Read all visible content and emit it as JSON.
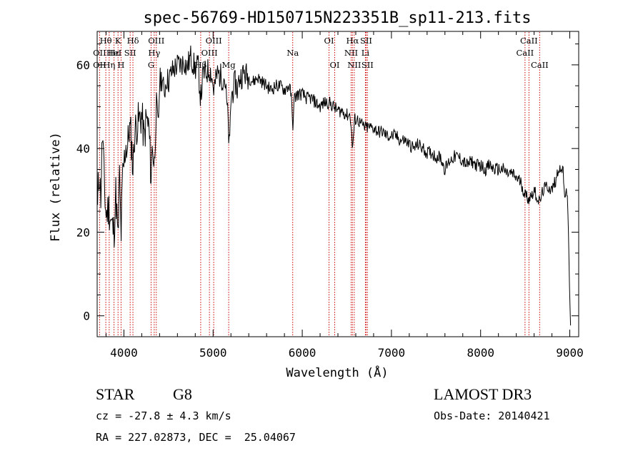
{
  "chart_data": {
    "type": "line",
    "title": "spec-56769-HD150715N223351B_sp11-213.fits",
    "xlabel": "Wavelength (Å)",
    "ylabel": "Flux (relative)",
    "xlim": [
      3700,
      9100
    ],
    "ylim": [
      -5,
      68
    ],
    "xticks": [
      4000,
      5000,
      6000,
      7000,
      8000,
      9000
    ],
    "yticks": [
      0,
      20,
      40,
      60
    ],
    "grid": false,
    "line_color": "#000000",
    "marker_color": "#cc0000",
    "anchors": [
      [
        3700,
        20
      ],
      [
        3710,
        30
      ],
      [
        3725,
        35
      ],
      [
        3740,
        28
      ],
      [
        3760,
        44
      ],
      [
        3780,
        31
      ],
      [
        3800,
        24
      ],
      [
        3830,
        26
      ],
      [
        3860,
        22
      ],
      [
        3889,
        20
      ],
      [
        3910,
        30
      ],
      [
        3934,
        17
      ],
      [
        3950,
        34
      ],
      [
        3968,
        19
      ],
      [
        3985,
        33
      ],
      [
        4000,
        36
      ],
      [
        4020,
        41
      ],
      [
        4040,
        40
      ],
      [
        4060,
        45
      ],
      [
        4080,
        43
      ],
      [
        4101,
        35
      ],
      [
        4120,
        44
      ],
      [
        4150,
        46
      ],
      [
        4180,
        47
      ],
      [
        4200,
        48
      ],
      [
        4227,
        42
      ],
      [
        4250,
        47
      ],
      [
        4280,
        45
      ],
      [
        4305,
        33
      ],
      [
        4320,
        42
      ],
      [
        4340,
        35
      ],
      [
        4360,
        50
      ],
      [
        4383,
        44
      ],
      [
        4400,
        56
      ],
      [
        4430,
        57
      ],
      [
        4450,
        53
      ],
      [
        4480,
        57
      ],
      [
        4500,
        56
      ],
      [
        4530,
        58
      ],
      [
        4560,
        59
      ],
      [
        4600,
        60
      ],
      [
        4640,
        60
      ],
      [
        4680,
        61
      ],
      [
        4700,
        59
      ],
      [
        4750,
        62
      ],
      [
        4800,
        59
      ],
      [
        4830,
        60
      ],
      [
        4861,
        52
      ],
      [
        4890,
        58
      ],
      [
        4920,
        58
      ],
      [
        4957,
        59
      ],
      [
        4980,
        58
      ],
      [
        5007,
        54
      ],
      [
        5050,
        58
      ],
      [
        5100,
        57
      ],
      [
        5130,
        57
      ],
      [
        5167,
        47
      ],
      [
        5173,
        44
      ],
      [
        5184,
        39
      ],
      [
        5200,
        52
      ],
      [
        5250,
        56
      ],
      [
        5270,
        54
      ],
      [
        5300,
        57
      ],
      [
        5350,
        58
      ],
      [
        5400,
        57
      ],
      [
        5450,
        56
      ],
      [
        5500,
        57
      ],
      [
        5550,
        56
      ],
      [
        5600,
        55
      ],
      [
        5650,
        54
      ],
      [
        5700,
        55
      ],
      [
        5750,
        55
      ],
      [
        5800,
        54
      ],
      [
        5850,
        55
      ],
      [
        5875,
        53
      ],
      [
        5893,
        45
      ],
      [
        5910,
        52
      ],
      [
        5950,
        53
      ],
      [
        6000,
        53
      ],
      [
        6050,
        52
      ],
      [
        6100,
        52
      ],
      [
        6150,
        51
      ],
      [
        6200,
        50
      ],
      [
        6250,
        51
      ],
      [
        6300,
        51
      ],
      [
        6350,
        50
      ],
      [
        6400,
        49
      ],
      [
        6450,
        49
      ],
      [
        6500,
        48
      ],
      [
        6540,
        48
      ],
      [
        6563,
        40
      ],
      [
        6590,
        47
      ],
      [
        6620,
        47
      ],
      [
        6650,
        46
      ],
      [
        6700,
        45
      ],
      [
        6750,
        45
      ],
      [
        6800,
        45
      ],
      [
        6850,
        44
      ],
      [
        6900,
        44
      ],
      [
        6950,
        43
      ],
      [
        7000,
        43
      ],
      [
        7050,
        43
      ],
      [
        7100,
        42
      ],
      [
        7150,
        42
      ],
      [
        7200,
        41
      ],
      [
        7250,
        40
      ],
      [
        7300,
        41
      ],
      [
        7350,
        40
      ],
      [
        7400,
        39
      ],
      [
        7450,
        39
      ],
      [
        7500,
        38
      ],
      [
        7550,
        38
      ],
      [
        7600,
        35
      ],
      [
        7650,
        37
      ],
      [
        7700,
        38
      ],
      [
        7750,
        38
      ],
      [
        7800,
        37
      ],
      [
        7850,
        36
      ],
      [
        7900,
        37
      ],
      [
        7950,
        36
      ],
      [
        8000,
        36
      ],
      [
        8050,
        35
      ],
      [
        8100,
        36
      ],
      [
        8150,
        35
      ],
      [
        8200,
        35
      ],
      [
        8250,
        35
      ],
      [
        8300,
        34
      ],
      [
        8350,
        34
      ],
      [
        8400,
        33
      ],
      [
        8450,
        32
      ],
      [
        8498,
        29
      ],
      [
        8542,
        28
      ],
      [
        8600,
        30
      ],
      [
        8662,
        27
      ],
      [
        8700,
        30
      ],
      [
        8750,
        31
      ],
      [
        8800,
        30
      ],
      [
        8850,
        33
      ],
      [
        8880,
        36
      ],
      [
        8900,
        34
      ],
      [
        8920,
        36
      ],
      [
        8940,
        28
      ],
      [
        8960,
        31
      ],
      [
        8980,
        25
      ],
      [
        9000,
        4
      ],
      [
        9010,
        -3
      ]
    ],
    "line_markers": [
      {
        "label": "Hθ",
        "x": 3797,
        "row": 0
      },
      {
        "label": "OII",
        "x": 3727,
        "row": 1
      },
      {
        "label": "OII",
        "x": 3727,
        "row": 2
      },
      {
        "label": "Hη",
        "x": 3835,
        "row": 2
      },
      {
        "label": "Hε",
        "x": 3889,
        "row": 1
      },
      {
        "label": "K",
        "x": 3934,
        "row": 0
      },
      {
        "label": "HeI",
        "x": 3889,
        "row": 1
      },
      {
        "label": "SII",
        "x": 4070,
        "row": 1
      },
      {
        "label": "H",
        "x": 3968,
        "row": 2
      },
      {
        "label": "Hδ",
        "x": 4101,
        "row": 0
      },
      {
        "label": "OIII",
        "x": 4363,
        "row": 0
      },
      {
        "label": "Hγ",
        "x": 4340,
        "row": 1
      },
      {
        "label": "G",
        "x": 4305,
        "row": 2
      },
      {
        "label": "OIII",
        "x": 5007,
        "row": 0
      },
      {
        "label": "OIII",
        "x": 4959,
        "row": 1
      },
      {
        "label": "Hβ",
        "x": 4861,
        "row": 2
      },
      {
        "label": "Mg",
        "x": 5175,
        "row": 2
      },
      {
        "label": "Na",
        "x": 5893,
        "row": 1
      },
      {
        "label": "OI",
        "x": 6300,
        "row": 0
      },
      {
        "label": "OI",
        "x": 6364,
        "row": 2
      },
      {
        "label": "Hα",
        "x": 6563,
        "row": 0
      },
      {
        "label": "NII",
        "x": 6548,
        "row": 1
      },
      {
        "label": "NII",
        "x": 6583,
        "row": 2
      },
      {
        "label": "SII",
        "x": 6716,
        "row": 0
      },
      {
        "label": "Li",
        "x": 6708,
        "row": 1
      },
      {
        "label": "SII",
        "x": 6731,
        "row": 2
      },
      {
        "label": "CaII",
        "x": 8542,
        "row": 0
      },
      {
        "label": "CaII",
        "x": 8498,
        "row": 1
      },
      {
        "label": "CaII",
        "x": 8662,
        "row": 2
      }
    ]
  },
  "info": {
    "object_class": "STAR",
    "subclass": "G8",
    "survey": "LAMOST DR3",
    "redshift": "cz = -27.8 ± 4.3 km/s",
    "obs_date": "Obs-Date: 20140421",
    "coords": "RA = 227.02873, DEC =  25.04067"
  }
}
